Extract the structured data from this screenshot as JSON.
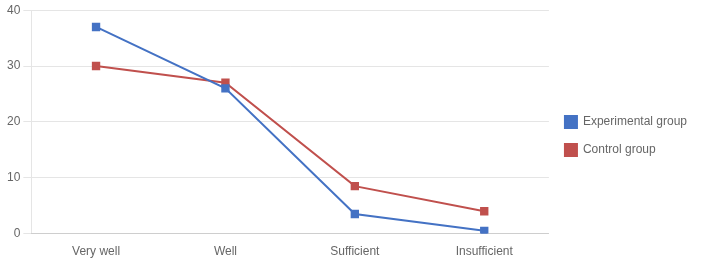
{
  "chart_data": {
    "type": "line",
    "categories": [
      "Very well",
      "Well",
      "Sufficient",
      "Insufficient"
    ],
    "series": [
      {
        "name": "Experimental group",
        "color": "#4472C4",
        "values": [
          37,
          26,
          3.5,
          0.5
        ]
      },
      {
        "name": "Control group",
        "color": "#C0504D",
        "values": [
          30,
          27,
          8.5,
          4
        ]
      }
    ],
    "marker": "square",
    "ylim": [
      0,
      40
    ],
    "yticks": [
      0,
      10,
      20,
      30,
      40
    ],
    "grid": true,
    "legend": "right"
  }
}
